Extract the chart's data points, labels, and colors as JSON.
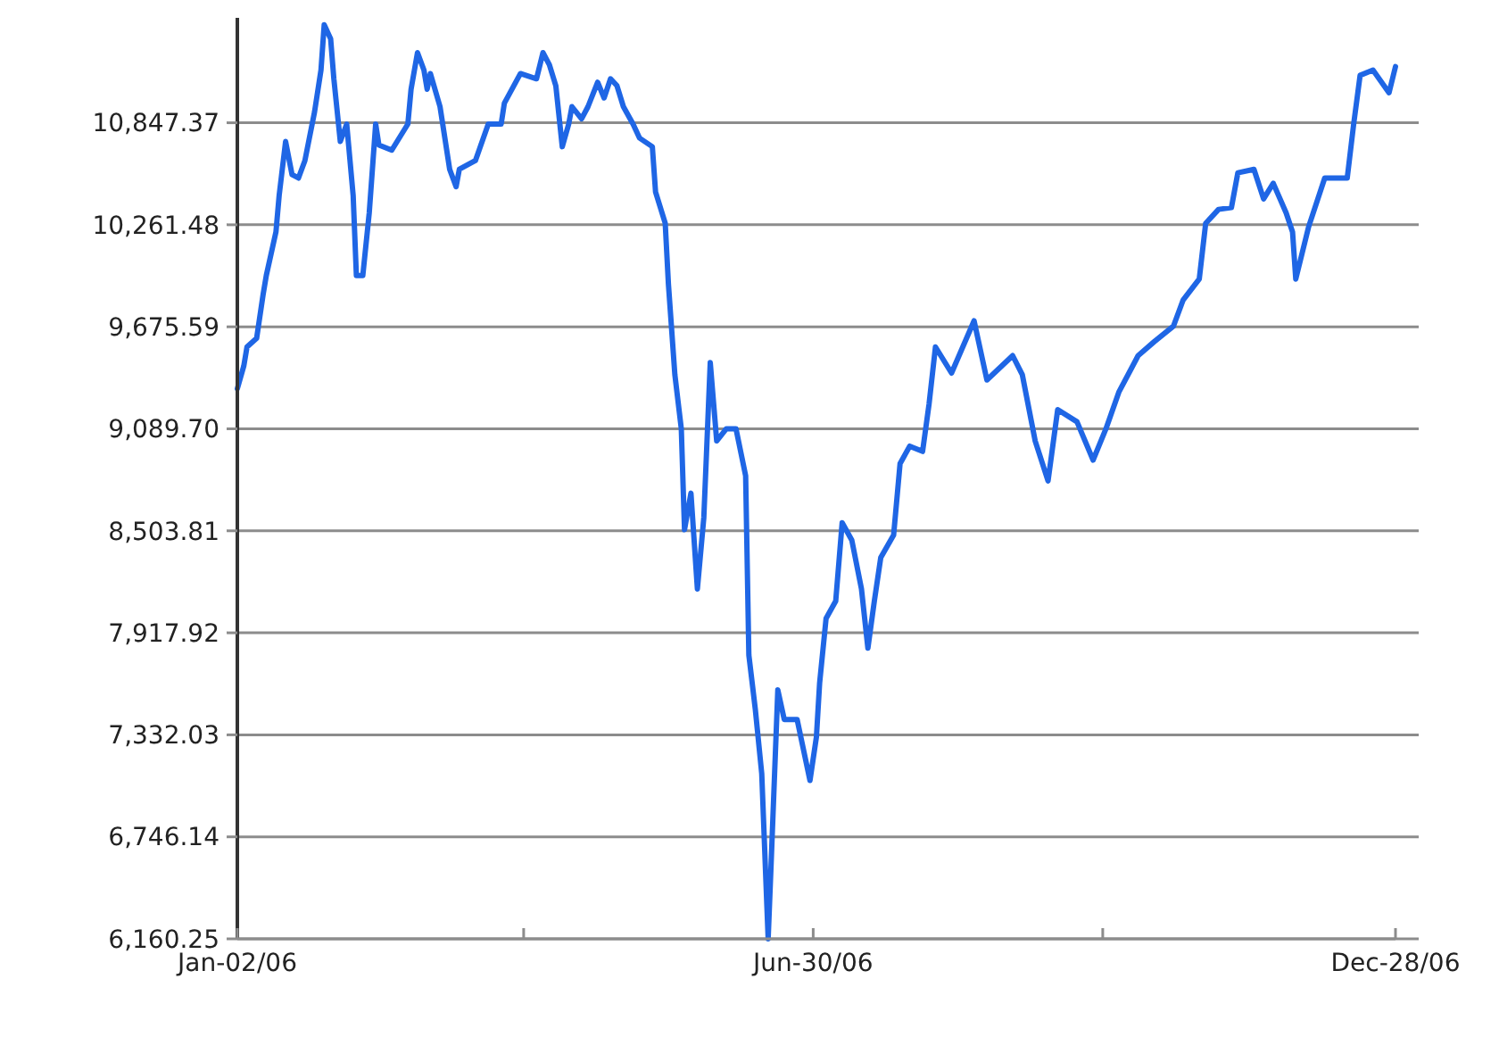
{
  "chart_data": {
    "type": "line",
    "x": [
      "2006-01-02",
      "2006-01-04",
      "2006-01-05",
      "2006-01-08",
      "2006-01-10",
      "2006-01-11",
      "2006-01-14",
      "2006-01-15",
      "2006-01-17",
      "2006-01-19",
      "2006-01-21",
      "2006-01-23",
      "2006-01-26",
      "2006-01-28",
      "2006-01-29",
      "2006-01-31",
      "2006-02-01",
      "2006-02-03",
      "2006-02-05",
      "2006-02-07",
      "2006-02-08",
      "2006-02-10",
      "2006-02-12",
      "2006-02-14",
      "2006-02-15",
      "2006-02-19",
      "2006-02-24",
      "2006-02-25",
      "2006-02-27",
      "2006-03-01",
      "2006-03-02",
      "2006-03-03",
      "2006-03-06",
      "2006-03-09",
      "2006-03-11",
      "2006-03-12",
      "2006-03-17",
      "2006-03-21",
      "2006-03-25",
      "2006-03-26",
      "2006-03-31",
      "2006-04-05",
      "2006-04-07",
      "2006-04-09",
      "2006-04-11",
      "2006-04-13",
      "2006-04-15",
      "2006-04-16",
      "2006-04-19",
      "2006-04-21",
      "2006-04-24",
      "2006-04-26",
      "2006-04-28",
      "2006-04-30",
      "2006-05-02",
      "2006-05-05",
      "2006-05-07",
      "2006-05-11",
      "2006-05-12",
      "2006-05-15",
      "2006-05-16",
      "2006-05-18",
      "2006-05-20",
      "2006-05-21",
      "2006-05-23",
      "2006-05-25",
      "2006-05-27",
      "2006-05-29",
      "2006-05-31",
      "2006-06-03",
      "2006-06-06",
      "2006-06-09",
      "2006-06-10",
      "2006-06-12",
      "2006-06-14",
      "2006-06-16",
      "2006-06-17",
      "2006-06-19",
      "2006-06-21",
      "2006-06-25",
      "2006-06-29",
      "2006-07-01",
      "2006-07-02",
      "2006-07-04",
      "2006-07-07",
      "2006-07-09",
      "2006-07-12",
      "2006-07-15",
      "2006-07-17",
      "2006-07-19",
      "2006-07-21",
      "2006-07-25",
      "2006-07-27",
      "2006-07-30",
      "2006-08-03",
      "2006-08-05",
      "2006-08-07",
      "2006-08-12",
      "2006-08-19",
      "2006-08-23",
      "2006-08-31",
      "2006-09-03",
      "2006-09-07",
      "2006-09-11",
      "2006-09-14",
      "2006-09-20",
      "2006-09-25",
      "2006-09-29",
      "2006-10-03",
      "2006-10-09",
      "2006-10-14",
      "2006-10-20",
      "2006-10-23",
      "2006-10-28",
      "2006-10-30",
      "2006-11-03",
      "2006-11-07",
      "2006-11-09",
      "2006-11-14",
      "2006-11-17",
      "2006-11-20",
      "2006-11-24",
      "2006-11-26",
      "2006-11-27",
      "2006-12-01",
      "2006-12-06",
      "2006-12-13",
      "2006-12-15",
      "2006-12-17",
      "2006-12-21",
      "2006-12-26",
      "2006-12-28"
    ],
    "series": [
      {
        "color": "#1f66e5",
        "values": [
          9320,
          9450,
          9560,
          9610,
          9860,
          9970,
          10220,
          10430,
          10740,
          10550,
          10530,
          10630,
          10910,
          11150,
          11410,
          11330,
          11100,
          10740,
          10840,
          10430,
          9970,
          9970,
          10330,
          10840,
          10720,
          10690,
          10840,
          11040,
          11250,
          11150,
          11040,
          11130,
          10940,
          10580,
          10480,
          10580,
          10630,
          10840,
          10840,
          10960,
          11130,
          11100,
          11250,
          11180,
          11060,
          10710,
          10840,
          10940,
          10870,
          10940,
          11080,
          10990,
          11100,
          11060,
          10940,
          10840,
          10760,
          10710,
          10450,
          10270,
          9920,
          9400,
          9090,
          8510,
          8720,
          8170,
          8580,
          9470,
          9020,
          9090,
          9090,
          8820,
          7790,
          7480,
          7110,
          6160.25,
          6630,
          7590,
          7420,
          7420,
          7070,
          7320,
          7630,
          8000,
          8100,
          8550,
          8450,
          8170,
          7830,
          8100,
          8350,
          8480,
          8890,
          8990,
          8960,
          9230,
          9560,
          9410,
          9710,
          9370,
          9510,
          9400,
          9020,
          8790,
          9200,
          9130,
          8910,
          9090,
          9300,
          9510,
          9590,
          9680,
          9830,
          9950,
          10270,
          10350,
          10360,
          10560,
          10580,
          10410,
          10500,
          10330,
          10220,
          9950,
          10250,
          10530,
          10530,
          10840,
          11120,
          11150,
          11020,
          11170
        ]
      }
    ],
    "xlim": [
      "2006-01-02",
      "2006-12-28"
    ],
    "xticks": [
      {
        "value": "2006-01-02",
        "label": "Jan-02/06"
      },
      {
        "value": "2006-04-01",
        "label": null
      },
      {
        "value": "2006-06-30",
        "label": "Jun-30/06"
      },
      {
        "value": "2006-09-28",
        "label": null
      },
      {
        "value": "2006-12-28",
        "label": "Dec-28/06"
      }
    ],
    "ylim": [
      6160.25,
      11450
    ],
    "yticks": [
      {
        "value": 6160.25,
        "label": "6,160.25"
      },
      {
        "value": 6746.14,
        "label": "6,746.14"
      },
      {
        "value": 7332.03,
        "label": "7,332.03"
      },
      {
        "value": 7917.92,
        "label": "7,917.92"
      },
      {
        "value": 8503.81,
        "label": "8,503.81"
      },
      {
        "value": 9089.7,
        "label": "9,089.70"
      },
      {
        "value": 9675.59,
        "label": "9,675.59"
      },
      {
        "value": 10261.48,
        "label": "10,261.48"
      },
      {
        "value": 10847.37,
        "label": "10,847.37"
      }
    ],
    "grid": "y",
    "line_style": "solid",
    "marker": "none"
  }
}
